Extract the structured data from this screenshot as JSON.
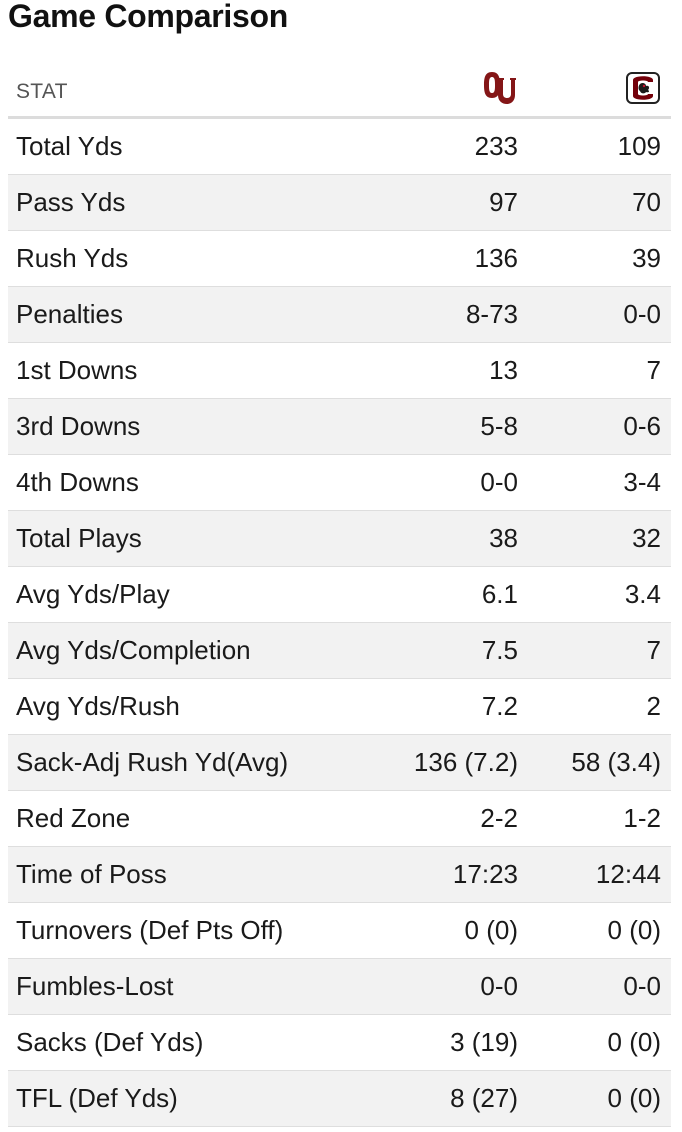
{
  "title": "Game Comparison",
  "header": {
    "stat_label": "STAT",
    "team1_logo": "oklahoma-ou-logo",
    "team2_logo": "south-carolina-gamecock-logo",
    "team1_color": "#841617",
    "team2_color": "#73000a"
  },
  "rows": [
    {
      "label": "Total Yds",
      "team1": "233",
      "team2": "109"
    },
    {
      "label": "Pass Yds",
      "team1": "97",
      "team2": "70"
    },
    {
      "label": "Rush Yds",
      "team1": "136",
      "team2": "39"
    },
    {
      "label": "Penalties",
      "team1": "8-73",
      "team2": "0-0"
    },
    {
      "label": "1st Downs",
      "team1": "13",
      "team2": "7"
    },
    {
      "label": "3rd Downs",
      "team1": "5-8",
      "team2": "0-6"
    },
    {
      "label": "4th Downs",
      "team1": "0-0",
      "team2": "3-4"
    },
    {
      "label": "Total Plays",
      "team1": "38",
      "team2": "32"
    },
    {
      "label": "Avg Yds/Play",
      "team1": "6.1",
      "team2": "3.4"
    },
    {
      "label": "Avg Yds/Completion",
      "team1": "7.5",
      "team2": "7"
    },
    {
      "label": "Avg Yds/Rush",
      "team1": "7.2",
      "team2": "2"
    },
    {
      "label": "Sack-Adj Rush Yd(Avg)",
      "team1": "136 (7.2)",
      "team2": "58 (3.4)"
    },
    {
      "label": "Red Zone",
      "team1": "2-2",
      "team2": "1-2"
    },
    {
      "label": "Time of Poss",
      "team1": "17:23",
      "team2": "12:44"
    },
    {
      "label": "Turnovers (Def Pts Off)",
      "team1": "0 (0)",
      "team2": "0 (0)"
    },
    {
      "label": "Fumbles-Lost",
      "team1": "0-0",
      "team2": "0-0"
    },
    {
      "label": "Sacks (Def Yds)",
      "team1": "3 (19)",
      "team2": "0 (0)"
    },
    {
      "label": "TFL (Def Yds)",
      "team1": "8 (27)",
      "team2": "0 (0)"
    }
  ]
}
